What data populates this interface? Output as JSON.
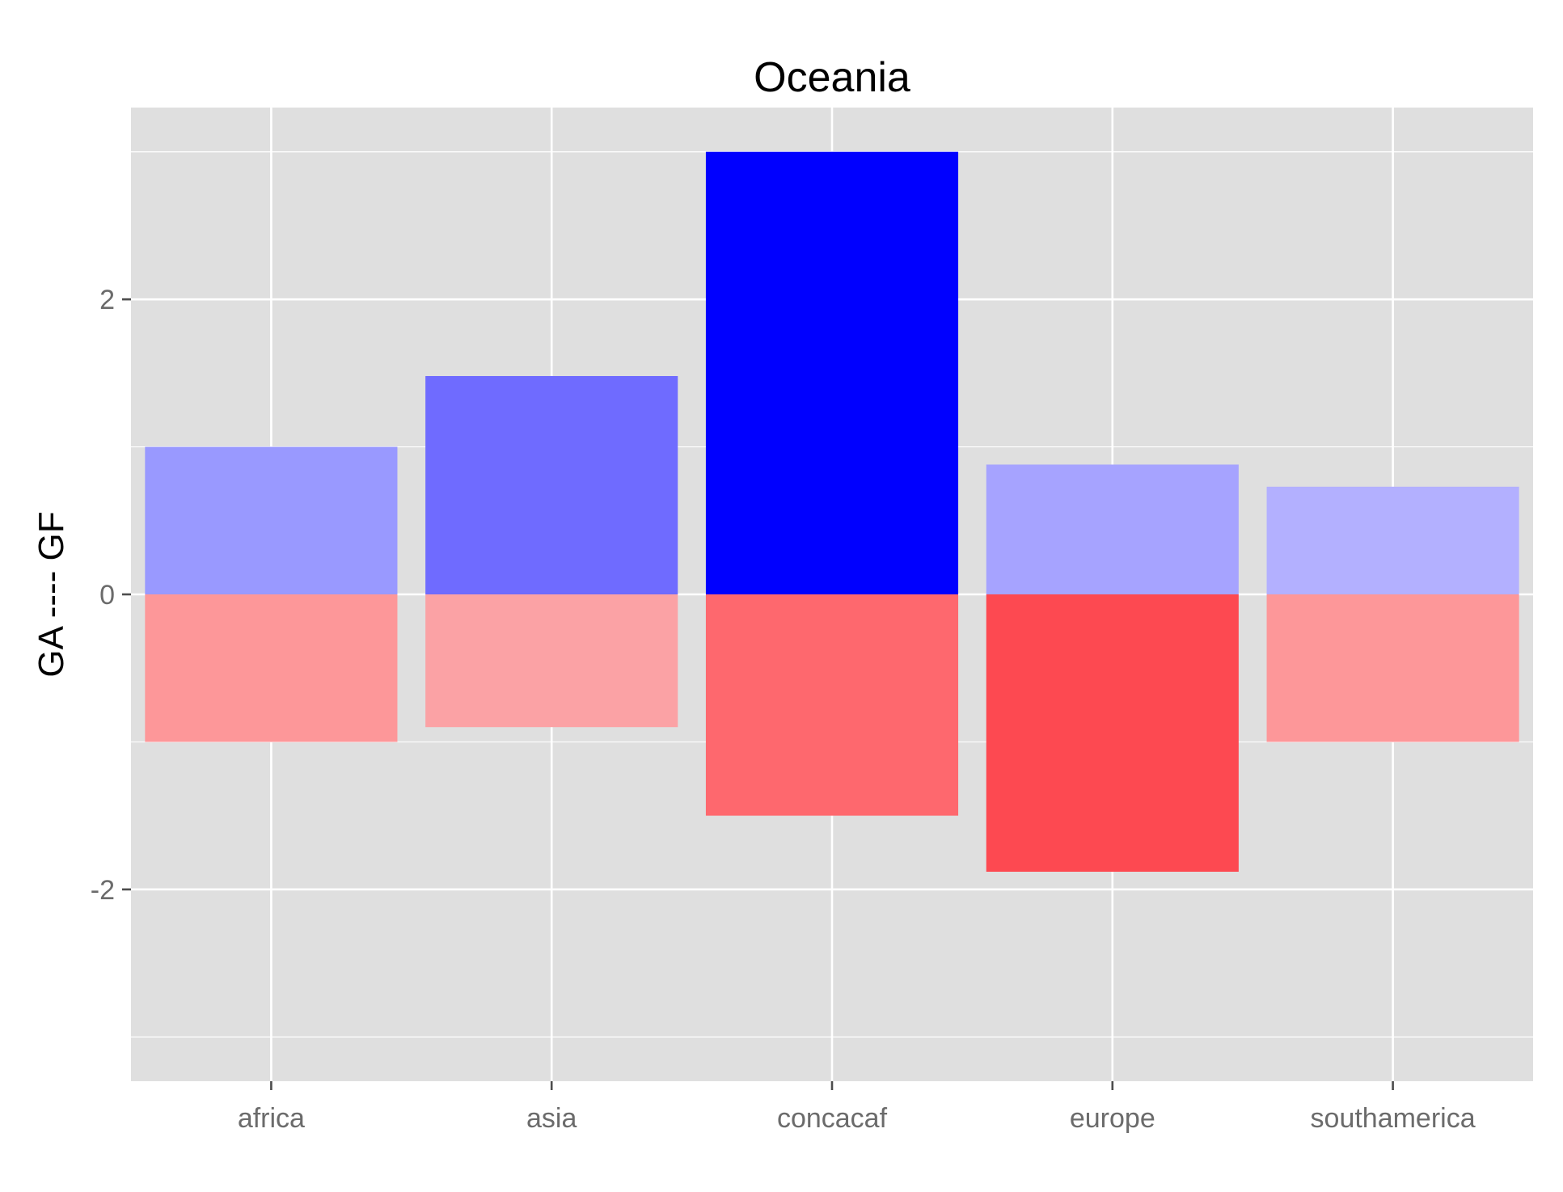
{
  "chart_data": {
    "type": "bar",
    "title": "Oceania",
    "xlabel": "",
    "ylabel": "GA ---- GF",
    "categories": [
      "africa",
      "asia",
      "concacaf",
      "europe",
      "southamerica"
    ],
    "series": [
      {
        "values": [
          1.0,
          1.48,
          3.0,
          0.88,
          0.73
        ],
        "colors": [
          "#9999ff",
          "#6f6bff",
          "#0000ff",
          "#a6a3ff",
          "#b3b0ff"
        ]
      },
      {
        "values": [
          -1.0,
          -0.9,
          -1.5,
          -1.88,
          -1.0
        ],
        "colors": [
          "#fd9799",
          "#fba2a5",
          "#fe686e",
          "#fd4951",
          "#fd9799"
        ]
      }
    ],
    "ylim": [
      -3.3,
      3.3
    ],
    "yticks": [
      -2,
      0,
      2
    ],
    "ytick_labels": [
      "-2",
      "0",
      "2"
    ],
    "grid": true,
    "panel_background": "#dfdfdf",
    "grid_color": "#ffffff"
  }
}
